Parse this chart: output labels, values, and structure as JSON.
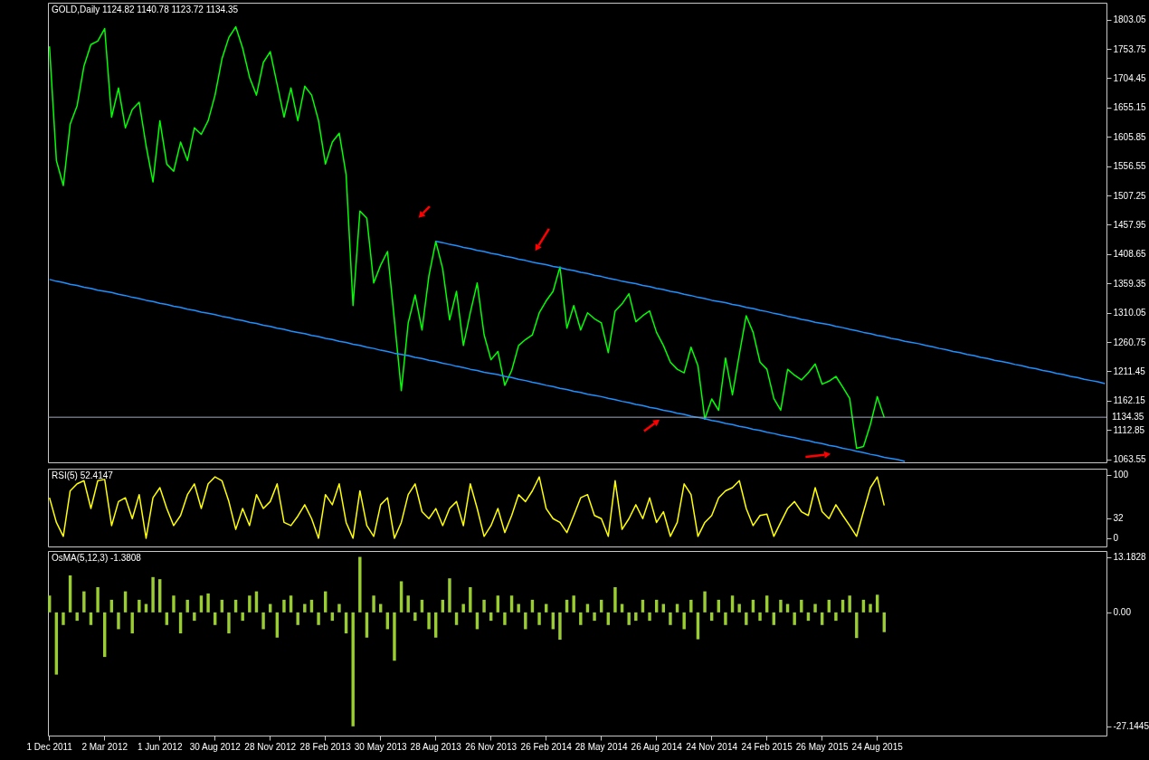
{
  "chart_data": [
    {
      "type": "line",
      "title": "GOLD,Daily  1124.82 1140.78 1123.72 1134.35",
      "ylim": [
        1058.5,
        1831.4
      ],
      "yticks": [
        1063.55,
        1112.85,
        1162.15,
        1211.45,
        1260.75,
        1310.05,
        1359.35,
        1408.65,
        1457.95,
        1507.25,
        1556.55,
        1605.85,
        1655.15,
        1704.45,
        1753.75,
        1803.05
      ],
      "tick_labels": "y",
      "series": [
        {
          "color": "#00ff00",
          "values": [
            1758,
            1566,
            1524,
            1627,
            1658,
            1725,
            1761,
            1767,
            1788,
            1639,
            1688,
            1621,
            1652,
            1664,
            1591,
            1530,
            1633,
            1560,
            1548,
            1597,
            1566,
            1621,
            1610,
            1633,
            1676,
            1737,
            1773,
            1791,
            1755,
            1706,
            1676,
            1731,
            1749,
            1694,
            1639,
            1688,
            1633,
            1691,
            1676,
            1633,
            1560,
            1597,
            1612,
            1542,
            1322,
            1481,
            1469,
            1360,
            1390,
            1413,
            1298,
            1179,
            1293,
            1340,
            1281,
            1372,
            1430,
            1384,
            1298,
            1346,
            1255,
            1310,
            1360,
            1273,
            1231,
            1245,
            1188,
            1213,
            1255,
            1265,
            1273,
            1310,
            1330,
            1346,
            1387,
            1284,
            1322,
            1281,
            1310,
            1300,
            1293,
            1243,
            1313,
            1325,
            1342,
            1295,
            1305,
            1313,
            1277,
            1255,
            1227,
            1215,
            1209,
            1252,
            1221,
            1131,
            1165,
            1146,
            1234,
            1172,
            1240,
            1305,
            1277,
            1227,
            1215,
            1166,
            1146,
            1215,
            1205,
            1197,
            1209,
            1224,
            1190,
            1195,
            1203,
            1185,
            1166,
            1082,
            1085,
            1122,
            1169,
            1134,
            null,
            null,
            null,
            null,
            null,
            null,
            null,
            null,
            null,
            null,
            null,
            null,
            null,
            null,
            null,
            null,
            null,
            null,
            null,
            null,
            null,
            null,
            null,
            null,
            null,
            null,
            null,
            null,
            null,
            null,
            null,
            null
          ]
        },
        {
          "type": "line",
          "color": "#1e90ff",
          "values": [
            null,
            null,
            null,
            null,
            null,
            null,
            null,
            null,
            null,
            null,
            null,
            null,
            null,
            null,
            null,
            null,
            null,
            null,
            null,
            null,
            null,
            null,
            null,
            null,
            null,
            null,
            null,
            null,
            null,
            null,
            null,
            null,
            null,
            null,
            null,
            null,
            null,
            null,
            null,
            null,
            null,
            null,
            null,
            null,
            null,
            null,
            null,
            null,
            null,
            null,
            null,
            null,
            null,
            null,
            null,
            null,
            1430,
            1428,
            1425,
            1423,
            1420,
            1418,
            1415,
            1413,
            1410,
            1408,
            1405,
            1403,
            1400,
            1398,
            1395,
            1393,
            1391,
            1388,
            1386,
            1383,
            1381,
            1378,
            1376,
            1373,
            1371,
            1368,
            1366,
            1363,
            1361,
            1359,
            1356,
            1354,
            1351,
            1349,
            1346,
            1344,
            1341,
            1339,
            1336,
            1334,
            1331,
            1329,
            1327,
            1324,
            1322,
            1319,
            1317,
            1314,
            1312,
            1309,
            1307,
            1304,
            1302,
            1299,
            1297,
            1294,
            1292,
            1290,
            1287,
            1285,
            1282,
            1280,
            1277,
            1275,
            1272,
            1270,
            1267,
            1265,
            1262,
            1260,
            1258,
            1255,
            1253,
            1250,
            1248,
            1245,
            1243,
            1240,
            1238,
            1235,
            1233,
            1230,
            1228,
            1226,
            1223,
            1221,
            1218,
            1216,
            1213,
            1211,
            1208,
            1206,
            1203,
            1201,
            1198,
            1196,
            1194,
            1191
          ]
        },
        {
          "type": "line",
          "color": "#1e90ff",
          "values": [
            1366,
            1363,
            1361,
            1358,
            1356,
            1353,
            1351,
            1348,
            1346,
            1344,
            1341,
            1339,
            1336,
            1334,
            1331,
            1329,
            1326,
            1324,
            1321,
            1319,
            1316,
            1314,
            1311,
            1309,
            1307,
            1304,
            1302,
            1299,
            1297,
            1294,
            1292,
            1289,
            1287,
            1284,
            1282,
            1279,
            1277,
            1275,
            1272,
            1270,
            1267,
            1265,
            1262,
            1260,
            1257,
            1255,
            1252,
            1250,
            1247,
            1245,
            1242,
            1240,
            1238,
            1235,
            1233,
            1230,
            1228,
            1225,
            1223,
            1220,
            1218,
            1215,
            1213,
            1210,
            1208,
            1206,
            1203,
            1201,
            1198,
            1196,
            1193,
            1191,
            1188,
            1186,
            1183,
            1181,
            1178,
            1176,
            1173,
            1171,
            1169,
            1166,
            1164,
            1161,
            1159,
            1156,
            1154,
            1151,
            1149,
            1146,
            1144,
            1141,
            1139,
            1136,
            1134,
            1132,
            1129,
            1127,
            1124,
            1122,
            1119,
            1117,
            1114,
            1112,
            1109,
            1107,
            1104,
            1102,
            1100,
            1097,
            1095,
            1092,
            1090,
            1087,
            1085,
            1082,
            1080,
            1077,
            1075,
            1072,
            1070,
            1067,
            1065,
            1063,
            1060,
            null,
            null,
            null,
            null,
            null,
            null,
            null,
            null,
            null,
            null,
            null,
            null,
            null,
            null,
            null,
            null,
            null,
            null,
            null,
            null,
            null,
            null,
            null,
            null,
            null,
            null,
            null,
            null,
            null
          ]
        }
      ],
      "ref_lines": [
        {
          "axis": "y",
          "value": 1134.35,
          "label": "1134.35",
          "color": "#a0a8b8"
        }
      ]
    },
    {
      "type": "line",
      "title": "RSI(5) 52.4147",
      "ylim": [
        -13,
        110
      ],
      "yticks": [
        0,
        32,
        100
      ],
      "tick_labels": "y",
      "color": "#ffff00",
      "values": [
        64,
        25,
        3,
        75,
        86,
        91,
        47,
        91,
        93,
        20,
        58,
        64,
        31,
        69,
        0,
        64,
        80,
        47,
        20,
        36,
        69,
        86,
        47,
        86,
        97,
        91,
        58,
        14,
        47,
        20,
        69,
        47,
        58,
        86,
        25,
        20,
        35,
        53,
        31,
        0,
        69,
        53,
        86,
        25,
        0,
        75,
        20,
        3,
        53,
        64,
        0,
        25,
        69,
        86,
        42,
        31,
        47,
        20,
        47,
        58,
        20,
        86,
        47,
        3,
        20,
        47,
        9,
        36,
        69,
        58,
        75,
        97,
        47,
        31,
        25,
        9,
        36,
        64,
        69,
        36,
        31,
        3,
        91,
        14,
        31,
        53,
        31,
        64,
        25,
        42,
        3,
        25,
        86,
        69,
        3,
        25,
        36,
        64,
        75,
        80,
        91,
        47,
        20,
        36,
        38,
        3,
        25,
        47,
        58,
        42,
        36,
        80,
        42,
        31,
        53,
        36,
        20,
        3,
        42,
        80,
        97,
        52,
        null,
        null,
        null,
        null,
        null,
        null,
        null,
        null,
        null,
        null,
        null,
        null,
        null,
        null,
        null,
        null,
        null,
        null,
        null,
        null,
        null,
        null,
        null,
        null,
        null,
        null,
        null,
        null,
        null,
        null,
        null,
        null
      ]
    },
    {
      "type": "bar",
      "title": "OsMA(5,12,3) -1.3808",
      "ylim": [
        -29.3,
        14.6
      ],
      "yticks": [
        13.1828,
        {
          "value": 0,
          "label": "0.00"
        },
        -27.1445
      ],
      "color": "#9acd32",
      "categories": [
        "1 Dec 2011",
        null,
        null,
        null,
        null,
        null,
        null,
        null,
        "2 Mar 2012",
        null,
        null,
        null,
        null,
        null,
        null,
        null,
        "1 Jun 2012",
        null,
        null,
        null,
        null,
        null,
        null,
        null,
        "30 Aug 2012",
        null,
        null,
        null,
        null,
        null,
        null,
        null,
        "28 Nov 2012",
        null,
        null,
        null,
        null,
        null,
        null,
        null,
        "28 Feb 2013",
        null,
        null,
        null,
        null,
        null,
        null,
        null,
        "30 May 2013",
        null,
        null,
        null,
        null,
        null,
        null,
        null,
        "28 Aug 2013",
        null,
        null,
        null,
        null,
        null,
        null,
        null,
        "26 Nov 2013",
        null,
        null,
        null,
        null,
        null,
        null,
        null,
        "26 Feb 2014",
        null,
        null,
        null,
        null,
        null,
        null,
        null,
        "28 May 2014",
        null,
        null,
        null,
        null,
        null,
        null,
        null,
        "26 Aug 2014",
        null,
        null,
        null,
        null,
        null,
        null,
        null,
        "24 Nov 2014",
        null,
        null,
        null,
        null,
        null,
        null,
        null,
        "24 Feb 2015",
        null,
        null,
        null,
        null,
        null,
        null,
        null,
        "26 May 2015",
        null,
        null,
        null,
        null,
        null,
        null,
        null,
        "24 Aug 2015",
        null,
        null,
        null,
        null,
        null,
        null,
        null,
        null,
        null,
        null,
        null,
        null,
        null,
        null,
        null,
        null,
        null,
        null,
        null,
        null,
        null,
        null,
        null,
        null,
        null,
        null,
        null,
        null,
        null,
        null,
        null,
        null,
        null
      ],
      "values": [
        4,
        -14.8,
        -3,
        8.8,
        -2,
        5,
        -3,
        6,
        -10.6,
        3,
        -4,
        5,
        -5,
        3,
        2,
        8.4,
        7.9,
        -3,
        4,
        -5,
        3,
        -2,
        4,
        4.5,
        -3,
        3,
        -5,
        3,
        -2,
        4,
        5,
        -4,
        2,
        -6,
        3,
        4,
        -3,
        2,
        3,
        -3,
        5,
        -2,
        2,
        -5,
        -27.1,
        13.2,
        -6,
        4,
        2,
        -4,
        -11.5,
        7.4,
        4,
        -2,
        3,
        -4,
        -6,
        3,
        8.1,
        -3,
        2,
        6,
        -4,
        3,
        -2,
        4,
        -3,
        4,
        2,
        -4,
        3,
        -3,
        2,
        -4,
        -6.5,
        3,
        4,
        -3,
        2,
        -2,
        3,
        -3,
        6,
        2,
        -3,
        -2,
        3,
        -2,
        3,
        2,
        -3,
        2,
        -4,
        3,
        -6.4,
        5,
        -2,
        3,
        -3,
        4,
        2,
        -3,
        3,
        -2,
        4,
        -3,
        3,
        2,
        -3,
        3,
        -2,
        2,
        -3,
        3,
        -2,
        3,
        4,
        -6.1,
        3,
        2,
        4.2,
        -4.7,
        null,
        null,
        null,
        null,
        null,
        null,
        null,
        null,
        null,
        null,
        null,
        null,
        null,
        null,
        null,
        null,
        null,
        null,
        null,
        null,
        null,
        null,
        null,
        null,
        null,
        null,
        null,
        null,
        null,
        null,
        null,
        null
      ]
    }
  ]
}
